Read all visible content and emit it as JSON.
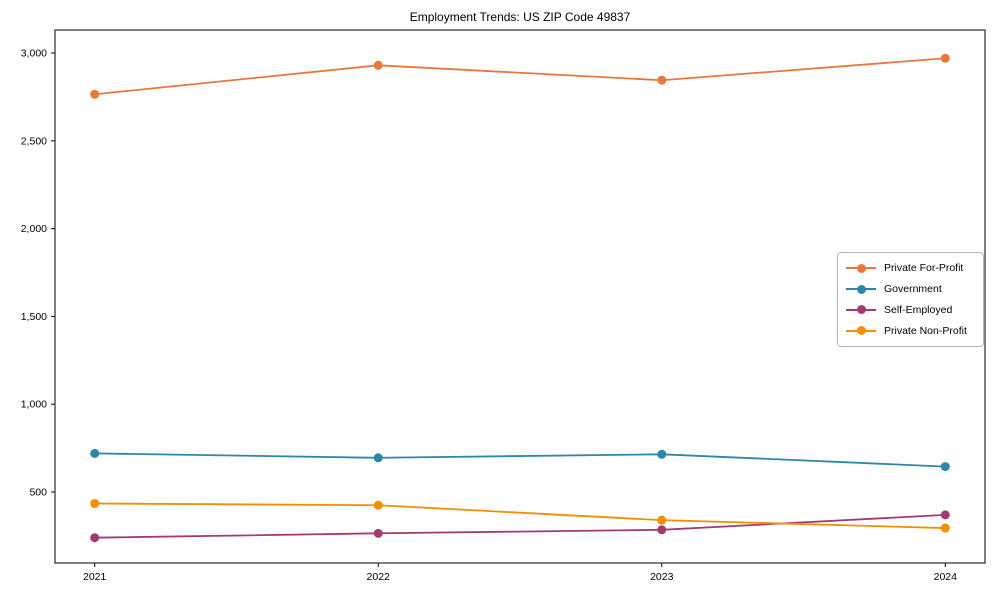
{
  "figure": {
    "background": "#ffffff"
  },
  "chart_data": {
    "type": "line",
    "title": "Employment Trends: US ZIP Code 49837",
    "x": [
      2021,
      2022,
      2023,
      2024
    ],
    "x_tick_labels": [
      "2021",
      "2022",
      "2023",
      "2024"
    ],
    "series": [
      {
        "name": "Private For-Profit",
        "color": "#e8773d",
        "values": [
          2765,
          2930,
          2845,
          2970
        ]
      },
      {
        "name": "Government",
        "color": "#2e86ab",
        "values": [
          720,
          695,
          715,
          645
        ]
      },
      {
        "name": "Self-Employed",
        "color": "#a23b72",
        "values": [
          240,
          265,
          285,
          370
        ]
      },
      {
        "name": "Private Non-Profit",
        "color": "#f18f01",
        "values": [
          435,
          425,
          340,
          295
        ]
      }
    ],
    "xlim": [
      2020.86,
      2024.14
    ],
    "ylim": [
      96,
      3131
    ],
    "y_ticks": [
      500,
      1000,
      1500,
      2000,
      2500,
      3000
    ],
    "y_tick_labels": [
      "500",
      "1,000",
      "1,500",
      "2,000",
      "2,500",
      "3,000"
    ],
    "xlabel": "",
    "ylabel": "",
    "grid": false,
    "legend_position": "center right",
    "marker": "circle",
    "marker_radius": 4.5,
    "line_width": 1.8
  }
}
